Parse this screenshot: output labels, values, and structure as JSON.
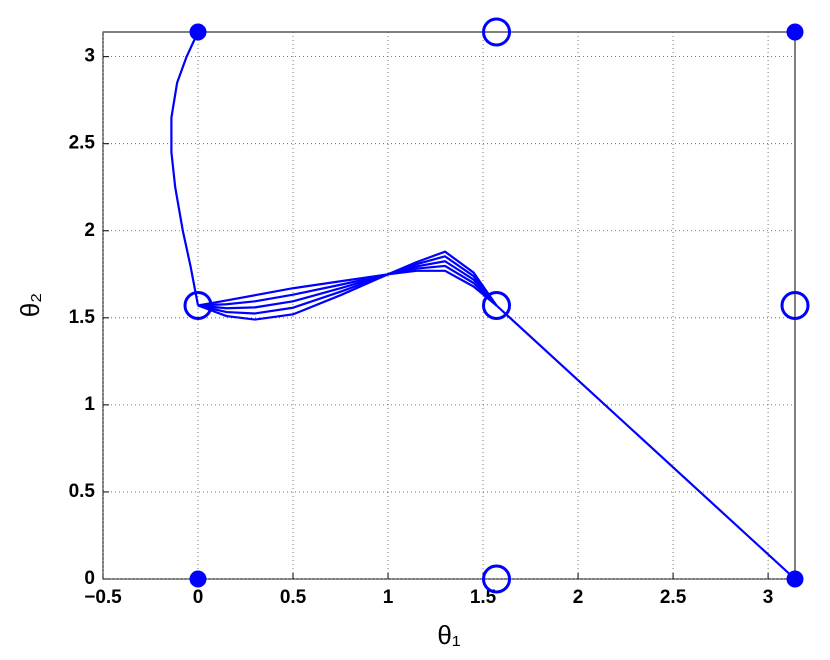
{
  "chart_data": {
    "type": "line",
    "xlabel": "θ₁",
    "ylabel": "θ₂",
    "xlim": [
      -0.5,
      3.1416
    ],
    "ylim": [
      0,
      3.1416
    ],
    "xticks": [
      {
        "value": -0.5,
        "label": "−0.5"
      },
      0,
      0.5,
      1,
      1.5,
      2,
      2.5,
      3
    ],
    "yticks": [
      0,
      0.5,
      1,
      1.5,
      2,
      2.5,
      3
    ],
    "grid": true,
    "series": [
      {
        "color": "#0000ff",
        "marker": "none",
        "x": [
          0,
          -0.06,
          -0.11,
          -0.14,
          -0.14,
          -0.12,
          -0.08,
          -0.04,
          0
        ],
        "values": [
          3.1416,
          3.0,
          2.85,
          2.65,
          2.45,
          2.25,
          2.0,
          1.8,
          1.5708
        ]
      },
      {
        "color": "#0000ff",
        "marker": "none",
        "x": [
          0,
          0.15,
          0.3,
          0.5,
          0.75,
          1,
          1.15,
          1.3,
          1.45,
          1.5708
        ],
        "values": [
          1.5708,
          1.51,
          1.49,
          1.52,
          1.63,
          1.75,
          1.77,
          1.77,
          1.68,
          1.5708
        ]
      },
      {
        "color": "#0000ff",
        "marker": "none",
        "x": [
          0,
          0.15,
          0.3,
          0.5,
          0.75,
          1,
          1.15,
          1.3,
          1.45,
          1.5708
        ],
        "values": [
          1.5708,
          1.533,
          1.525,
          1.558,
          1.65,
          1.75,
          1.783,
          1.798,
          1.7,
          1.5708
        ]
      },
      {
        "color": "#0000ff",
        "marker": "none",
        "x": [
          0,
          0.15,
          0.3,
          0.5,
          0.75,
          1,
          1.15,
          1.3,
          1.45,
          1.5708
        ],
        "values": [
          1.5708,
          1.555,
          1.56,
          1.595,
          1.67,
          1.75,
          1.795,
          1.825,
          1.72,
          1.5708
        ]
      },
      {
        "color": "#0000ff",
        "marker": "none",
        "x": [
          0,
          0.15,
          0.3,
          0.5,
          0.75,
          1,
          1.15,
          1.3,
          1.45,
          1.5708
        ],
        "values": [
          1.5708,
          1.578,
          1.595,
          1.633,
          1.69,
          1.75,
          1.808,
          1.853,
          1.74,
          1.5708
        ]
      },
      {
        "color": "#0000ff",
        "marker": "none",
        "x": [
          0,
          0.15,
          0.3,
          0.5,
          0.75,
          1,
          1.15,
          1.3,
          1.45,
          1.5708
        ],
        "values": [
          1.5708,
          1.6,
          1.63,
          1.67,
          1.71,
          1.75,
          1.82,
          1.88,
          1.76,
          1.5708
        ]
      },
      {
        "color": "#0000ff",
        "marker": "none",
        "x": [
          1.5708,
          3.1416
        ],
        "values": [
          1.5708,
          0
        ]
      },
      {
        "color": "#0000ff",
        "marker": "filled",
        "x": [
          0,
          3.1416,
          0,
          3.1416
        ],
        "values": [
          3.1416,
          3.1416,
          0,
          0
        ]
      },
      {
        "color": "#0000ff",
        "marker": "open",
        "x": [
          1.5708,
          0,
          1.5708,
          3.1416,
          1.5708
        ],
        "values": [
          3.1416,
          1.5708,
          1.5708,
          1.5708,
          0
        ]
      }
    ]
  }
}
